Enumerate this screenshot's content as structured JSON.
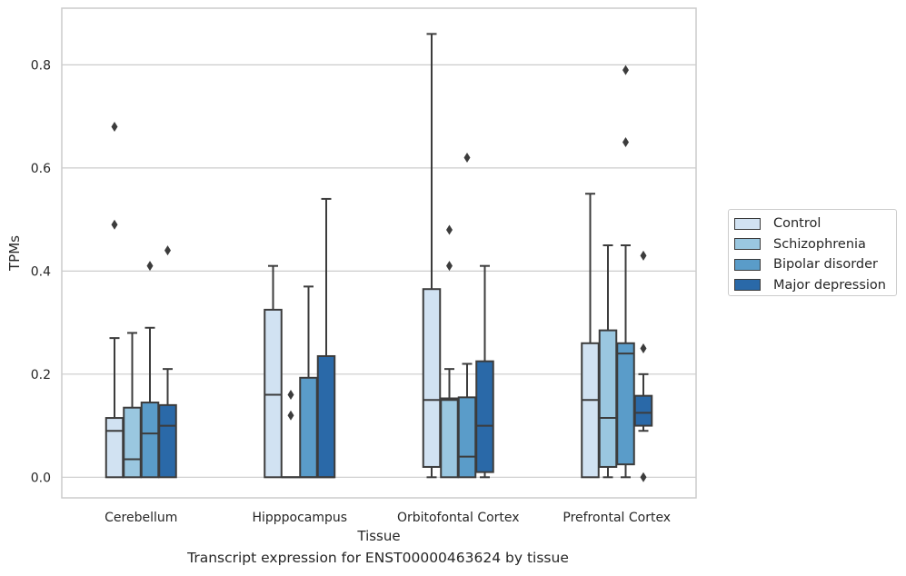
{
  "caption": "Transcript expression for ENST00000463624 by tissue",
  "chart_data": {
    "type": "box",
    "xlabel": "Tissue",
    "ylabel": "TPMs",
    "ylim": [
      -0.04,
      0.91
    ],
    "yticks": [
      "0.0",
      "0.2",
      "0.4",
      "0.6",
      "0.8"
    ],
    "grid": "horizontal",
    "legend_position": "right",
    "categories": [
      "Cerebellum",
      "Hipppocampus",
      "Orbitofontal Cortex",
      "Prefrontal Cortex"
    ],
    "series": [
      {
        "name": "Control",
        "color": "#d1e2f2",
        "boxes": [
          {
            "q1": 0.0,
            "median": 0.09,
            "q3": 0.115,
            "whisker_low": 0.0,
            "whisker_high": 0.27,
            "outliers": [
              0.68,
              0.49
            ]
          },
          {
            "q1": 0.0,
            "median": 0.16,
            "q3": 0.325,
            "whisker_low": 0.0,
            "whisker_high": 0.41,
            "outliers": []
          },
          {
            "q1": 0.02,
            "median": 0.15,
            "q3": 0.365,
            "whisker_low": 0.0,
            "whisker_high": 0.86,
            "outliers": []
          },
          {
            "q1": 0.0,
            "median": 0.15,
            "q3": 0.26,
            "whisker_low": 0.0,
            "whisker_high": 0.55,
            "outliers": []
          }
        ]
      },
      {
        "name": "Schizophrenia",
        "color": "#9ac7e0",
        "boxes": [
          {
            "q1": 0.0,
            "median": 0.035,
            "q3": 0.135,
            "whisker_low": 0.0,
            "whisker_high": 0.28,
            "outliers": []
          },
          {
            "q1": 0.0,
            "median": 0.0,
            "q3": 0.0,
            "whisker_low": 0.0,
            "whisker_high": 0.0,
            "outliers": [
              0.16,
              0.12
            ]
          },
          {
            "q1": 0.0,
            "median": 0.15,
            "q3": 0.153,
            "whisker_low": 0.0,
            "whisker_high": 0.21,
            "outliers": [
              0.48,
              0.41
            ]
          },
          {
            "q1": 0.02,
            "median": 0.115,
            "q3": 0.285,
            "whisker_low": 0.0,
            "whisker_high": 0.45,
            "outliers": []
          }
        ]
      },
      {
        "name": "Bipolar disorder",
        "color": "#5a9cc9",
        "boxes": [
          {
            "q1": 0.0,
            "median": 0.085,
            "q3": 0.145,
            "whisker_low": 0.0,
            "whisker_high": 0.29,
            "outliers": [
              0.41
            ]
          },
          {
            "q1": 0.0,
            "median": 0.0,
            "q3": 0.193,
            "whisker_low": 0.0,
            "whisker_high": 0.37,
            "outliers": []
          },
          {
            "q1": 0.0,
            "median": 0.04,
            "q3": 0.155,
            "whisker_low": 0.0,
            "whisker_high": 0.22,
            "outliers": [
              0.62
            ]
          },
          {
            "q1": 0.025,
            "median": 0.24,
            "q3": 0.26,
            "whisker_low": 0.0,
            "whisker_high": 0.45,
            "outliers": [
              0.79,
              0.65
            ]
          }
        ]
      },
      {
        "name": "Major depression",
        "color": "#2a69a8",
        "boxes": [
          {
            "q1": 0.0,
            "median": 0.1,
            "q3": 0.14,
            "whisker_low": 0.0,
            "whisker_high": 0.21,
            "outliers": [
              0.44
            ]
          },
          {
            "q1": 0.0,
            "median": 0.0,
            "q3": 0.235,
            "whisker_low": 0.0,
            "whisker_high": 0.54,
            "outliers": []
          },
          {
            "q1": 0.01,
            "median": 0.1,
            "q3": 0.225,
            "whisker_low": 0.0,
            "whisker_high": 0.41,
            "outliers": []
          },
          {
            "q1": 0.1,
            "median": 0.125,
            "q3": 0.158,
            "whisker_low": 0.09,
            "whisker_high": 0.2,
            "outliers": [
              0.43,
              0.25,
              0.0
            ]
          }
        ]
      }
    ]
  }
}
